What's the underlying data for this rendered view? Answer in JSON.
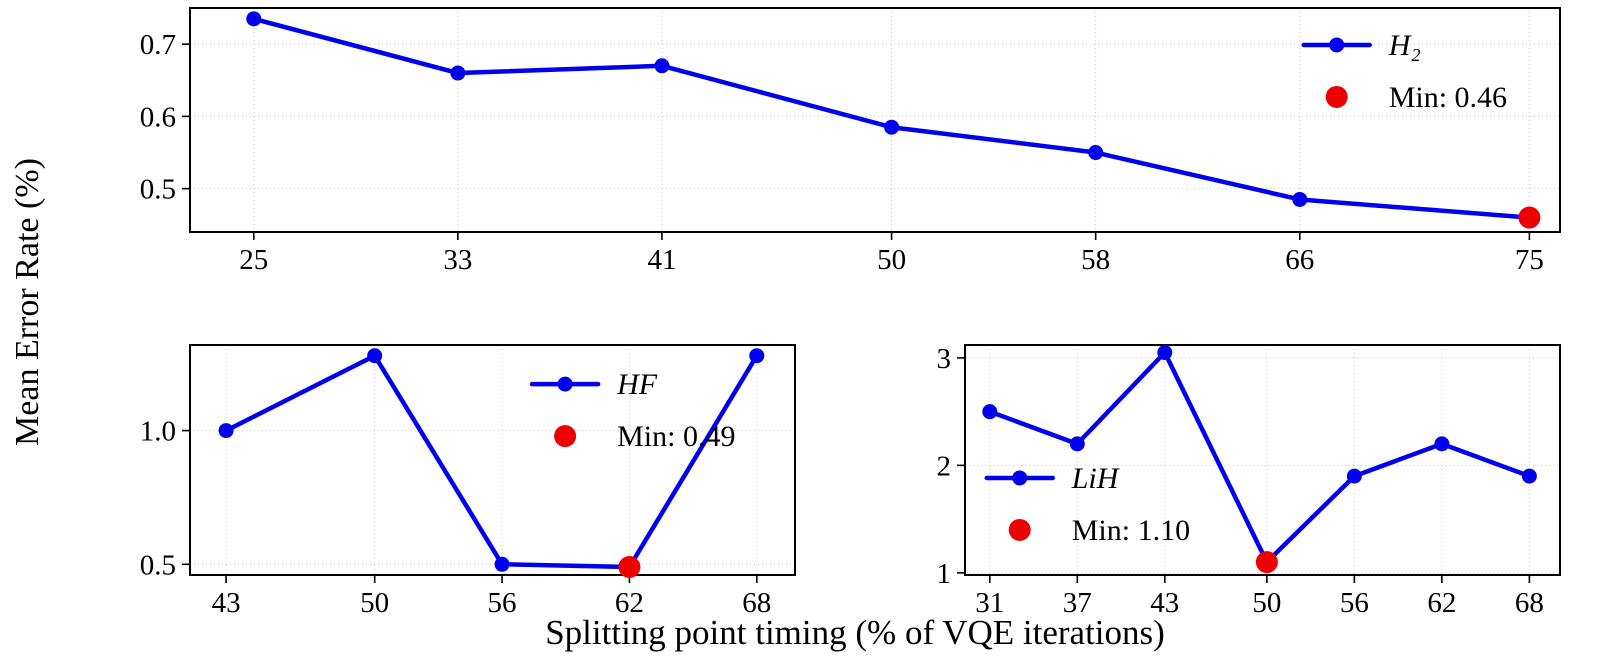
{
  "figure": {
    "ylabel": "Mean Error Rate (%)",
    "xlabel": "Splitting point timing (% of VQE iterations)"
  },
  "colors": {
    "line": "#0000ee",
    "min_marker": "#ee0000",
    "grid": "#c8c8c8",
    "axes": "#000000",
    "background": "#ffffff"
  },
  "chart_data": [
    {
      "id": "h2",
      "type": "line",
      "series_label": "H₂",
      "min_label": "Min: 0.46",
      "x": [
        25,
        33,
        41,
        50,
        58,
        66,
        75
      ],
      "y": [
        0.735,
        0.66,
        0.67,
        0.585,
        0.55,
        0.485,
        0.46
      ],
      "min_point": {
        "x": 75,
        "y": 0.46
      },
      "xticks": [
        25,
        33,
        41,
        50,
        58,
        66,
        75
      ],
      "xtick_labels": [
        "25",
        "33",
        "41",
        "50",
        "58",
        "66",
        "75"
      ],
      "ytick_values": [
        0.5,
        0.6,
        0.7
      ],
      "ytick_labels": [
        "0.5",
        "0.6",
        "0.7"
      ],
      "xlim": [
        22.5,
        76.2
      ],
      "ylim": [
        0.44,
        0.75
      ],
      "grid": true,
      "legend": {
        "position": "upper right",
        "fx": 0.837,
        "fy": 0.165
      }
    },
    {
      "id": "hf",
      "type": "line",
      "series_label": "HF",
      "min_label": "Min: 0.49",
      "x": [
        43,
        50,
        56,
        62,
        68
      ],
      "y": [
        1.0,
        1.28,
        0.5,
        0.49,
        1.28
      ],
      "min_point": {
        "x": 62,
        "y": 0.49
      },
      "xticks": [
        43,
        50,
        56,
        62,
        68
      ],
      "xtick_labels": [
        "43",
        "50",
        "56",
        "62",
        "68"
      ],
      "ytick_values": [
        0.5,
        1.0
      ],
      "ytick_labels": [
        "0.5",
        "1.0"
      ],
      "xlim": [
        41.3,
        69.8
      ],
      "ylim": [
        0.46,
        1.32
      ],
      "grid": true,
      "legend": {
        "position": "upper center-right",
        "fx": 0.62,
        "fy": 0.17
      }
    },
    {
      "id": "lih",
      "type": "line",
      "series_label": "LiH",
      "min_label": "Min: 1.10",
      "x": [
        31,
        37,
        43,
        50,
        56,
        62,
        68
      ],
      "y": [
        2.5,
        2.2,
        3.05,
        1.1,
        1.9,
        2.2,
        1.9
      ],
      "min_point": {
        "x": 50,
        "y": 1.1
      },
      "xticks": [
        31,
        37,
        43,
        50,
        56,
        62,
        68
      ],
      "xtick_labels": [
        "31",
        "37",
        "43",
        "50",
        "56",
        "62",
        "68"
      ],
      "ytick_values": [
        1,
        2,
        3
      ],
      "ytick_labels": [
        "1",
        "2",
        "3"
      ],
      "xlim": [
        29.3,
        70.1
      ],
      "ylim": [
        0.98,
        3.12
      ],
      "grid": true,
      "legend": {
        "position": "center left",
        "fx": 0.092,
        "fy": 0.578
      }
    }
  ]
}
